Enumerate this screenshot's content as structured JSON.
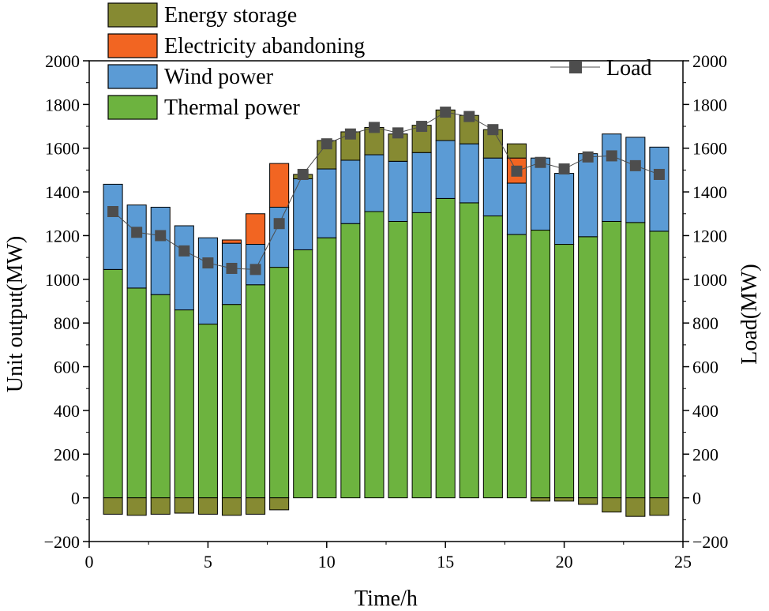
{
  "chart_data": {
    "type": "bar",
    "subtype": "stacked-bar-with-line",
    "x": [
      1,
      2,
      3,
      4,
      5,
      6,
      7,
      8,
      9,
      10,
      11,
      12,
      13,
      14,
      15,
      16,
      17,
      18,
      19,
      20,
      21,
      22,
      23,
      24
    ],
    "series": [
      {
        "name": "Thermal power",
        "color": "#6db33f",
        "values": [
          1045,
          960,
          930,
          860,
          795,
          885,
          975,
          1055,
          1135,
          1190,
          1255,
          1310,
          1265,
          1305,
          1370,
          1350,
          1290,
          1205,
          1225,
          1160,
          1195,
          1265,
          1260,
          1220
        ]
      },
      {
        "name": "Wind power",
        "color": "#5b9bd5",
        "values": [
          390,
          380,
          400,
          385,
          395,
          280,
          185,
          275,
          325,
          315,
          290,
          260,
          275,
          275,
          265,
          270,
          265,
          235,
          330,
          325,
          380,
          400,
          390,
          385
        ]
      },
      {
        "name": "Electricity abandoning",
        "color": "#f26522",
        "values": [
          0,
          0,
          0,
          0,
          0,
          15,
          140,
          200,
          0,
          0,
          0,
          0,
          0,
          0,
          0,
          0,
          0,
          115,
          0,
          0,
          0,
          0,
          0,
          0
        ]
      },
      {
        "name": "Energy storage",
        "color": "#868a32",
        "values": [
          -75,
          -80,
          -75,
          -70,
          -75,
          -80,
          -75,
          -55,
          20,
          130,
          130,
          125,
          125,
          125,
          140,
          130,
          130,
          65,
          -15,
          -15,
          -30,
          -65,
          -85,
          -80
        ]
      }
    ],
    "line": {
      "name": "Load",
      "color": "#4d4d4d",
      "values": [
        1310,
        1215,
        1200,
        1130,
        1075,
        1050,
        1045,
        1255,
        1480,
        1620,
        1665,
        1695,
        1670,
        1700,
        1765,
        1745,
        1685,
        1495,
        1535,
        1505,
        1560,
        1565,
        1520,
        1480
      ]
    },
    "title": "",
    "xlabel": "Time/h",
    "ylabel": "Unit output(MW)",
    "y2label": "Load(MW)",
    "xlim": [
      0,
      25
    ],
    "ylim": [
      -200,
      2000
    ],
    "y2lim": [
      -200,
      2000
    ],
    "xticks": [
      "0",
      "5",
      "10",
      "15",
      "20",
      "25"
    ],
    "yticks": [
      "−200",
      "0",
      "200",
      "400",
      "600",
      "800",
      "1000",
      "1200",
      "1400",
      "1600",
      "1800",
      "2000"
    ],
    "y2ticks": [
      "−200",
      "0",
      "200",
      "400",
      "600",
      "800",
      "1000",
      "1200",
      "1400",
      "1600",
      "1800",
      "2000"
    ],
    "legend_left": [
      "Energy storage",
      "Electricity abandoning",
      "Wind power",
      "Thermal power"
    ],
    "legend_right": "Load",
    "legend_placement": "top-left and top-right"
  }
}
